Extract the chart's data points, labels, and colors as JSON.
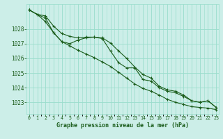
{
  "title": "Graphe pression niveau de la mer (hPa)",
  "background_color": "#cceee8",
  "grid_color": "#99ddcc",
  "line_color": "#1a5c1a",
  "x_ticks": [
    0,
    1,
    2,
    3,
    4,
    5,
    6,
    7,
    8,
    9,
    10,
    11,
    12,
    13,
    14,
    15,
    16,
    17,
    18,
    19,
    20,
    21,
    22,
    23
  ],
  "y_ticks": [
    1023,
    1024,
    1025,
    1026,
    1027,
    1028
  ],
  "ylim": [
    1022.2,
    1029.7
  ],
  "xlim": [
    -0.3,
    23.3
  ],
  "series": [
    [
      1029.3,
      1029.0,
      1028.9,
      1028.2,
      1027.7,
      1027.5,
      1027.4,
      1027.45,
      1027.45,
      1027.4,
      1027.05,
      1026.5,
      1026.0,
      1025.4,
      1024.9,
      1024.65,
      1024.1,
      1023.85,
      1023.75,
      1023.5,
      1023.1,
      1023.0,
      1023.1,
      1022.65
    ],
    [
      1029.3,
      1029.0,
      1028.75,
      1027.75,
      1027.15,
      1027.0,
      1027.25,
      1027.4,
      1027.45,
      1027.35,
      1026.5,
      1025.7,
      1025.35,
      1025.35,
      1024.55,
      1024.45,
      1024.0,
      1023.75,
      1023.65,
      1023.4,
      1023.1,
      1023.0,
      1023.1,
      1022.65
    ],
    [
      1029.3,
      1029.0,
      1028.5,
      1027.75,
      1027.15,
      1026.85,
      1026.55,
      1026.3,
      1026.05,
      1025.75,
      1025.45,
      1025.05,
      1024.65,
      1024.25,
      1023.95,
      1023.75,
      1023.5,
      1023.2,
      1023.0,
      1022.85,
      1022.7,
      1022.65,
      1022.6,
      1022.5
    ]
  ]
}
